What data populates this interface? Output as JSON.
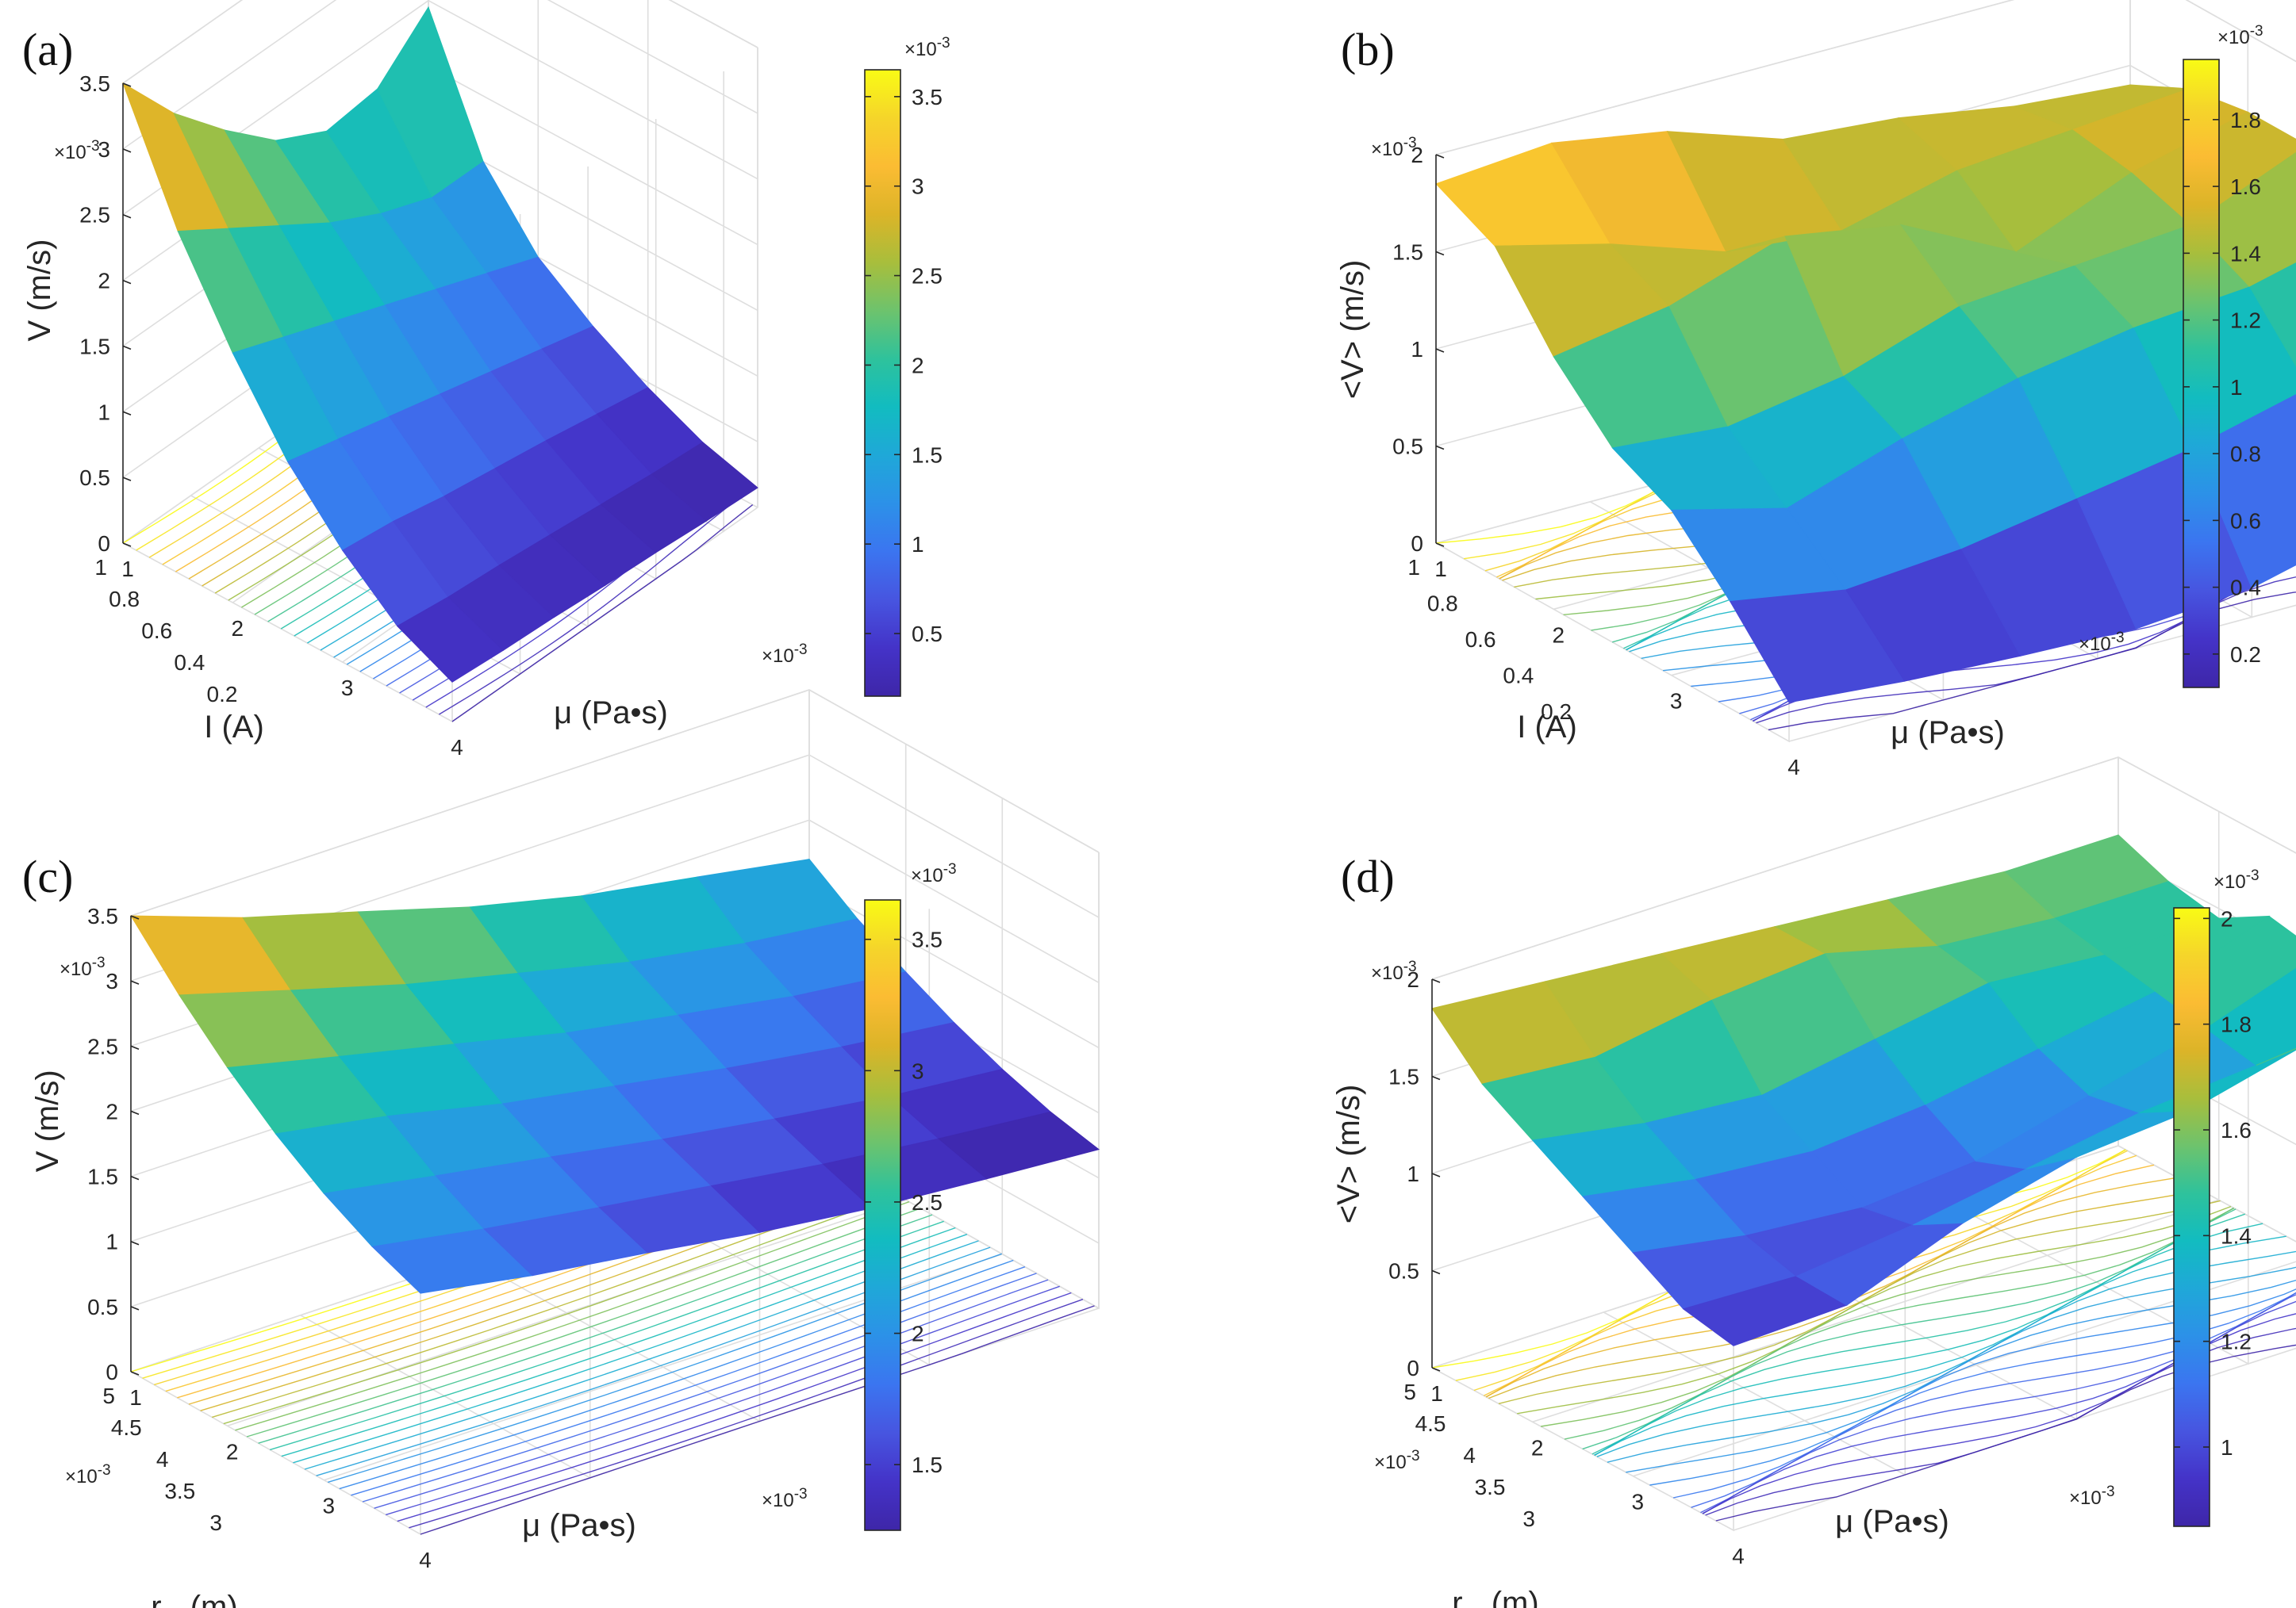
{
  "figure": {
    "colormap": [
      "#3e26a8",
      "#4433c8",
      "#4755e0",
      "#3b75f0",
      "#2c91e8",
      "#1fa8d8",
      "#12bcc0",
      "#2ec29c",
      "#6dc36d",
      "#a8be3c",
      "#dcb428",
      "#fbbc33",
      "#f5d52a",
      "#f9fb15"
    ]
  },
  "chart_data": [
    {
      "type": "surface",
      "panel": "(a)",
      "title": "",
      "xlabel": "μ (Pa•s)",
      "ylabel": "I (A)",
      "zlabel": "V (m/s)",
      "x_exponent": "×10",
      "x_exponent_power": "-3",
      "z_exponent": "×10",
      "z_exponent_power": "-3",
      "cb_exponent": "×10",
      "cb_exponent_power": "-3",
      "xlim": [
        1,
        4
      ],
      "ylim": [
        0.1,
        1
      ],
      "zlim": [
        0,
        3.5
      ],
      "xticks": [
        "1",
        "2",
        "3",
        "4"
      ],
      "yticks": [
        "0.2",
        "0.4",
        "0.6",
        "0.8",
        "1"
      ],
      "zticks": [
        "0",
        "0.5",
        "1",
        "1.5",
        "2",
        "2.5",
        "3",
        "3.5"
      ],
      "cb_range": [
        0.15,
        3.65
      ],
      "cb_ticks": [
        "0.5",
        "1",
        "1.5",
        "2",
        "2.5",
        "3",
        "3.5"
      ],
      "x": [
        1,
        1.5,
        2,
        2.5,
        3,
        3.5,
        4
      ],
      "y": [
        1,
        0.85,
        0.7,
        0.55,
        0.4,
        0.25,
        0.1
      ],
      "z": [
        [
          3.5,
          2.6,
          1.9,
          1.3,
          0.85,
          0.5,
          0.3
        ],
        [
          3.0,
          2.35,
          1.75,
          1.2,
          0.8,
          0.45,
          0.27
        ],
        [
          2.6,
          2.1,
          1.6,
          1.1,
          0.72,
          0.42,
          0.25
        ],
        [
          2.25,
          1.85,
          1.45,
          1.0,
          0.66,
          0.38,
          0.22
        ],
        [
          2.05,
          1.65,
          1.3,
          0.9,
          0.6,
          0.34,
          0.2
        ],
        [
          2.1,
          1.5,
          1.15,
          0.8,
          0.53,
          0.3,
          0.17
        ],
        [
          2.45,
          1.5,
          1.0,
          0.7,
          0.46,
          0.27,
          0.15
        ]
      ]
    },
    {
      "type": "surface",
      "panel": "(b)",
      "title": "",
      "xlabel": "μ (Pa•s)",
      "ylabel": "I (A)",
      "zlabel": "<V> (m/s)",
      "x_exponent": "×10",
      "x_exponent_power": "-3",
      "z_exponent": "×10",
      "z_exponent_power": "-3",
      "cb_exponent": "×10",
      "cb_exponent_power": "-3",
      "xlim": [
        1,
        4
      ],
      "ylim": [
        0.1,
        1
      ],
      "zlim": [
        0,
        2
      ],
      "xticks": [
        "1",
        "2",
        "3",
        "4"
      ],
      "yticks": [
        "0.2",
        "0.4",
        "0.6",
        "0.8",
        "1"
      ],
      "zticks": [
        "0",
        "0.5",
        "1",
        "1.5",
        "2"
      ],
      "cb_range": [
        0.1,
        1.98
      ],
      "cb_ticks": [
        "0.2",
        "0.4",
        "0.6",
        "0.8",
        "1",
        "1.2",
        "1.4",
        "1.6",
        "1.8"
      ],
      "x": [
        1,
        1.5,
        2,
        2.5,
        3,
        3.5,
        4
      ],
      "y": [
        1,
        0.85,
        0.7,
        0.55,
        0.4,
        0.25,
        0.1
      ],
      "z": [
        [
          1.85,
          1.7,
          1.3,
          1.0,
          0.85,
          0.55,
          0.2
        ],
        [
          1.9,
          1.55,
          1.4,
          0.95,
          0.7,
          0.45,
          0.15
        ],
        [
          1.8,
          1.35,
          1.6,
          1.05,
          0.9,
          0.5,
          0.12
        ],
        [
          1.6,
          1.3,
          1.5,
          1.25,
          1.05,
          0.6,
          0.1
        ],
        [
          1.55,
          1.45,
          1.2,
          1.3,
          1.15,
          0.7,
          0.15
        ],
        [
          1.45,
          1.5,
          1.45,
          1.35,
          1.2,
          0.85,
          0.3
        ],
        [
          1.4,
          1.55,
          1.6,
          1.6,
          1.35,
          0.9,
          0.35
        ]
      ]
    },
    {
      "type": "surface",
      "panel": "(c)",
      "title": "",
      "xlabel": "μ (Pa•s)",
      "ylabel": "r",
      "ylabel_sub": "m",
      "ylabel_unit": " (m)",
      "zlabel": "V (m/s)",
      "x_exponent": "×10",
      "x_exponent_power": "-3",
      "y_exponent": "×10",
      "y_exponent_power": "-3",
      "z_exponent": "×10",
      "z_exponent_power": "-3",
      "cb_exponent": "×10",
      "cb_exponent_power": "-3",
      "xlim": [
        1,
        4
      ],
      "ylim": [
        3,
        5
      ],
      "zlim": [
        0,
        3.5
      ],
      "xticks": [
        "1",
        "2",
        "3",
        "4"
      ],
      "yticks": [
        "3",
        "3.5",
        "4",
        "4.5",
        "5"
      ],
      "zticks": [
        "0",
        "0.5",
        "1",
        "1.5",
        "2",
        "2.5",
        "3",
        "3.5"
      ],
      "cb_range": [
        1.25,
        3.65
      ],
      "cb_ticks": [
        "1.5",
        "2",
        "2.5",
        "3",
        "3.5"
      ],
      "x": [
        1,
        1.5,
        2,
        2.5,
        3,
        3.5,
        4
      ],
      "y": [
        5,
        4.67,
        4.33,
        4,
        3.67,
        3.33,
        3
      ],
      "z": [
        [
          3.5,
          3.1,
          2.75,
          2.45,
          2.2,
          2.0,
          1.85
        ],
        [
          3.2,
          2.85,
          2.55,
          2.3,
          2.05,
          1.85,
          1.7
        ],
        [
          2.95,
          2.6,
          2.35,
          2.1,
          1.9,
          1.72,
          1.58
        ],
        [
          2.7,
          2.4,
          2.15,
          1.95,
          1.75,
          1.6,
          1.45
        ],
        [
          2.5,
          2.2,
          2.0,
          1.8,
          1.62,
          1.48,
          1.35
        ],
        [
          2.35,
          2.05,
          1.85,
          1.67,
          1.5,
          1.38,
          1.28
        ],
        [
          2.2,
          1.95,
          1.75,
          1.57,
          1.42,
          1.3,
          1.22
        ]
      ]
    },
    {
      "type": "surface",
      "panel": "(d)",
      "title": "",
      "xlabel": "μ (Pa•s)",
      "ylabel": "r",
      "ylabel_sub": "m",
      "ylabel_unit": " (m)",
      "zlabel": "<V> (m/s)",
      "x_exponent": "×10",
      "x_exponent_power": "-3",
      "y_exponent": "×10",
      "y_exponent_power": "-3",
      "z_exponent": "×10",
      "z_exponent_power": "-3",
      "cb_exponent": "×10",
      "cb_exponent_power": "-3",
      "xlim": [
        1,
        4
      ],
      "ylim": [
        3,
        5
      ],
      "zlim": [
        0,
        2
      ],
      "xticks": [
        "1",
        "2",
        "3",
        "4"
      ],
      "yticks": [
        "3",
        "3.5",
        "4",
        "4.5",
        "5"
      ],
      "zticks": [
        "0",
        "0.5",
        "1",
        "1.5",
        "2"
      ],
      "cb_range": [
        0.85,
        2.02
      ],
      "cb_ticks": [
        "1",
        "1.2",
        "1.4",
        "1.6",
        "1.8",
        "2"
      ],
      "x": [
        1,
        1.5,
        2,
        2.5,
        3,
        3.5,
        4
      ],
      "y": [
        5,
        4.67,
        4.33,
        4,
        3.67,
        3.33,
        3
      ],
      "z": [
        [
          1.85,
          1.6,
          1.45,
          1.3,
          1.15,
          1.0,
          0.95
        ],
        [
          1.8,
          1.55,
          1.35,
          1.2,
          1.05,
          0.98,
          0.97
        ],
        [
          1.75,
          1.65,
          1.3,
          1.15,
          1.0,
          1.05,
          1.2
        ],
        [
          1.7,
          1.7,
          1.4,
          1.2,
          1.05,
          1.15,
          1.35
        ],
        [
          1.65,
          1.55,
          1.5,
          1.3,
          1.2,
          1.25,
          1.4
        ],
        [
          1.6,
          1.5,
          1.45,
          1.4,
          1.35,
          1.3,
          1.55
        ],
        [
          1.6,
          1.5,
          1.45,
          1.6,
          1.55,
          1.35,
          1.85
        ]
      ]
    }
  ]
}
